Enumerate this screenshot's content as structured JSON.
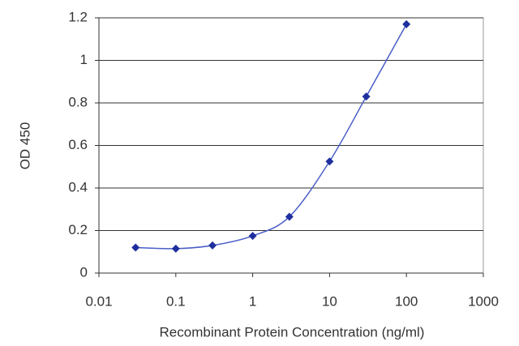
{
  "chart_data": {
    "type": "line",
    "xlabel": "Recombinant Protein Concentration (ng/ml)",
    "ylabel": "OD 450",
    "x": [
      0.03,
      0.1,
      0.3,
      1,
      3,
      10,
      30,
      100
    ],
    "values": [
      0.12,
      0.115,
      0.13,
      0.175,
      0.265,
      0.525,
      0.83,
      1.17
    ],
    "color": "#1f2f9e",
    "line_color": "#4a5ec8",
    "xscale": "log",
    "xlim": [
      0.01,
      1000
    ],
    "xticks": [
      0.01,
      0.1,
      1,
      10,
      100,
      1000
    ],
    "ylim": [
      0,
      1.2
    ],
    "yticks": [
      0,
      0.2,
      0.4,
      0.6,
      0.8,
      1,
      1.2
    ],
    "grid": true
  }
}
